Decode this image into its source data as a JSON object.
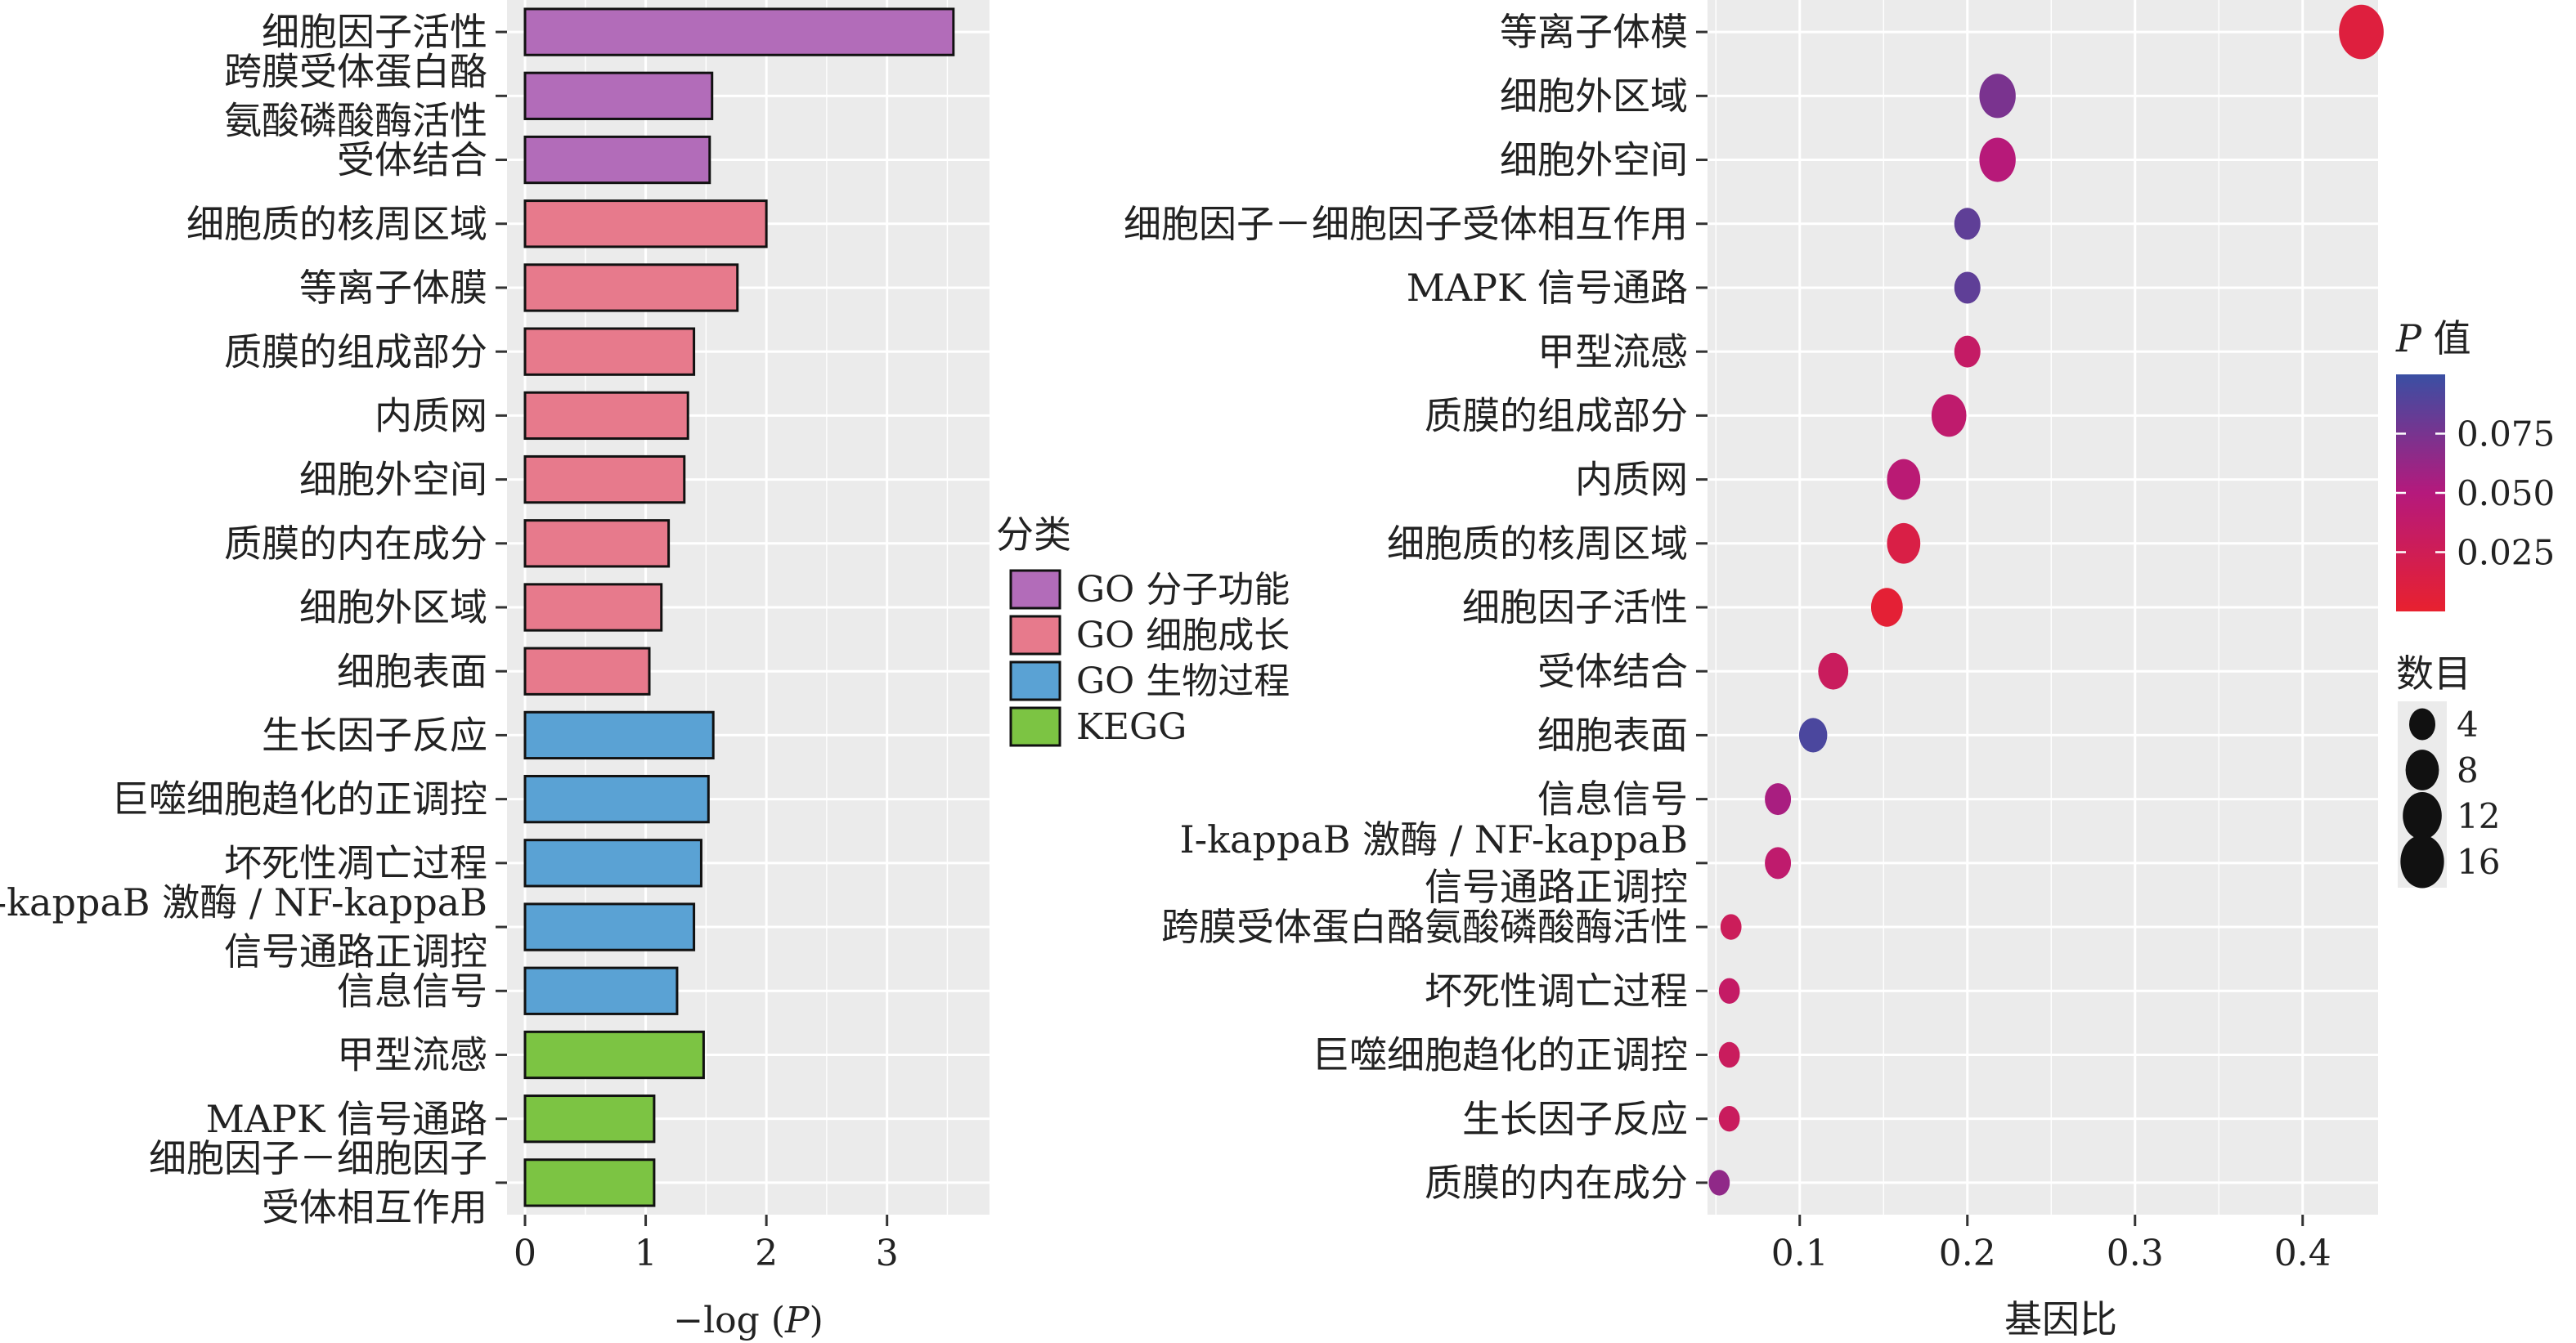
{
  "chart_data": [
    {
      "type": "bar",
      "orientation": "horizontal",
      "xlabel_prefix": "−log (",
      "xlabel_var": "P",
      "xlabel_suffix": ")",
      "xlim": [
        0,
        3.7
      ],
      "xticks": [
        0,
        1,
        2,
        3
      ],
      "grid": true,
      "legend": {
        "title": "分类",
        "placement": "between-panels",
        "entries": [
          {
            "label": "GO 分子功能",
            "color": "#b26cb9"
          },
          {
            "label": "GO 细胞成长",
            "color": "#e77a8c"
          },
          {
            "label": "GO 生物过程",
            "color": "#5aa2d4"
          },
          {
            "label": "KEGG",
            "color": "#7cc443"
          }
        ]
      },
      "bars": [
        {
          "label": [
            "细胞因子活性"
          ],
          "value": 3.55,
          "category": "GO 分子功能"
        },
        {
          "label": [
            "跨膜受体蛋白酪",
            "氨酸磷酸酶活性"
          ],
          "value": 1.55,
          "category": "GO 分子功能"
        },
        {
          "label": [
            "受体结合"
          ],
          "value": 1.53,
          "category": "GO 分子功能"
        },
        {
          "label": [
            "细胞质的核周区域"
          ],
          "value": 2.0,
          "category": "GO 细胞成长"
        },
        {
          "label": [
            "等离子体膜"
          ],
          "value": 1.76,
          "category": "GO 细胞成长"
        },
        {
          "label": [
            "质膜的组成部分"
          ],
          "value": 1.4,
          "category": "GO 细胞成长"
        },
        {
          "label": [
            "内质网"
          ],
          "value": 1.35,
          "category": "GO 细胞成长"
        },
        {
          "label": [
            "细胞外空间"
          ],
          "value": 1.32,
          "category": "GO 细胞成长"
        },
        {
          "label": [
            "质膜的内在成分"
          ],
          "value": 1.19,
          "category": "GO 细胞成长"
        },
        {
          "label": [
            "细胞外区域"
          ],
          "value": 1.13,
          "category": "GO 细胞成长"
        },
        {
          "label": [
            "细胞表面"
          ],
          "value": 1.03,
          "category": "GO 细胞成长"
        },
        {
          "label": [
            "生长因子反应"
          ],
          "value": 1.56,
          "category": "GO 生物过程"
        },
        {
          "label": [
            "巨噬细胞趋化的正调控"
          ],
          "value": 1.52,
          "category": "GO 生物过程"
        },
        {
          "label": [
            "坏死性凋亡过程"
          ],
          "value": 1.46,
          "category": "GO 生物过程"
        },
        {
          "label": [
            "I-kappaB 激酶 / NF-kappaB",
            "信号通路正调控"
          ],
          "value": 1.4,
          "category": "GO 生物过程"
        },
        {
          "label": [
            "信息信号"
          ],
          "value": 1.26,
          "category": "GO 生物过程"
        },
        {
          "label": [
            "甲型流感"
          ],
          "value": 1.48,
          "category": "KEGG"
        },
        {
          "label": [
            "MAPK 信号通路"
          ],
          "value": 1.07,
          "category": "KEGG"
        },
        {
          "label": [
            "细胞因子－细胞因子",
            "受体相互作用"
          ],
          "value": 1.07,
          "category": "KEGG"
        }
      ]
    },
    {
      "type": "scatter",
      "xlabel": "基因比",
      "xlim": [
        0.045,
        0.445
      ],
      "xticks": [
        0.1,
        0.2,
        0.3,
        0.4
      ],
      "grid": true,
      "color_legend": {
        "title_var": "P",
        "title_suffix": " 值",
        "min": 0.0,
        "max": 0.1,
        "ticks": [
          0.075,
          0.05,
          0.025
        ],
        "tick_labels": [
          "0.075",
          "0.050",
          "0.025"
        ],
        "color_low": "#e8212f",
        "color_mid": "#b5197c",
        "color_high": "#3a4fa3"
      },
      "size_legend": {
        "title": "数目",
        "values": [
          4,
          8,
          12,
          16
        ]
      },
      "points": [
        {
          "label": [
            "等离子体模"
          ],
          "gene_ratio": 0.435,
          "p": 0.01,
          "count": 17
        },
        {
          "label": [
            "细胞外区域"
          ],
          "gene_ratio": 0.218,
          "p": 0.074,
          "count": 10
        },
        {
          "label": [
            "细胞外空间"
          ],
          "gene_ratio": 0.218,
          "p": 0.048,
          "count": 10
        },
        {
          "label": [
            "细胞因子－细胞因子受体相互作用"
          ],
          "gene_ratio": 0.2,
          "p": 0.085,
          "count": 4
        },
        {
          "label": [
            "MAPK 信号通路"
          ],
          "gene_ratio": 0.2,
          "p": 0.085,
          "count": 4
        },
        {
          "label": [
            "甲型流感"
          ],
          "gene_ratio": 0.2,
          "p": 0.035,
          "count": 4
        },
        {
          "label": [
            "质膜的组成部分"
          ],
          "gene_ratio": 0.189,
          "p": 0.04,
          "count": 9
        },
        {
          "label": [
            "内质网"
          ],
          "gene_ratio": 0.162,
          "p": 0.045,
          "count": 8
        },
        {
          "label": [
            "细胞质的核周区域"
          ],
          "gene_ratio": 0.162,
          "p": 0.015,
          "count": 8
        },
        {
          "label": [
            "细胞因子活性"
          ],
          "gene_ratio": 0.152,
          "p": 0.004,
          "count": 7
        },
        {
          "label": [
            "受体结合"
          ],
          "gene_ratio": 0.12,
          "p": 0.03,
          "count": 6
        },
        {
          "label": [
            "细胞表面"
          ],
          "gene_ratio": 0.108,
          "p": 0.093,
          "count": 5
        },
        {
          "label": [
            "信息信号"
          ],
          "gene_ratio": 0.087,
          "p": 0.055,
          "count": 4
        },
        {
          "label": [
            "I-kappaB 激酶 / NF-kappaB",
            "信号通路正调控"
          ],
          "gene_ratio": 0.087,
          "p": 0.04,
          "count": 4
        },
        {
          "label": [
            "跨膜受体蛋白酪氨酸磷酸酶活性"
          ],
          "gene_ratio": 0.059,
          "p": 0.028,
          "count": 2
        },
        {
          "label": [
            "坏死性调亡过程"
          ],
          "gene_ratio": 0.058,
          "p": 0.035,
          "count": 2
        },
        {
          "label": [
            "巨噬细胞趋化的正调控"
          ],
          "gene_ratio": 0.058,
          "p": 0.03,
          "count": 2
        },
        {
          "label": [
            "生长因子反应"
          ],
          "gene_ratio": 0.058,
          "p": 0.03,
          "count": 2
        },
        {
          "label": [
            "质膜的内在成分"
          ],
          "gene_ratio": 0.052,
          "p": 0.065,
          "count": 2
        }
      ]
    }
  ]
}
